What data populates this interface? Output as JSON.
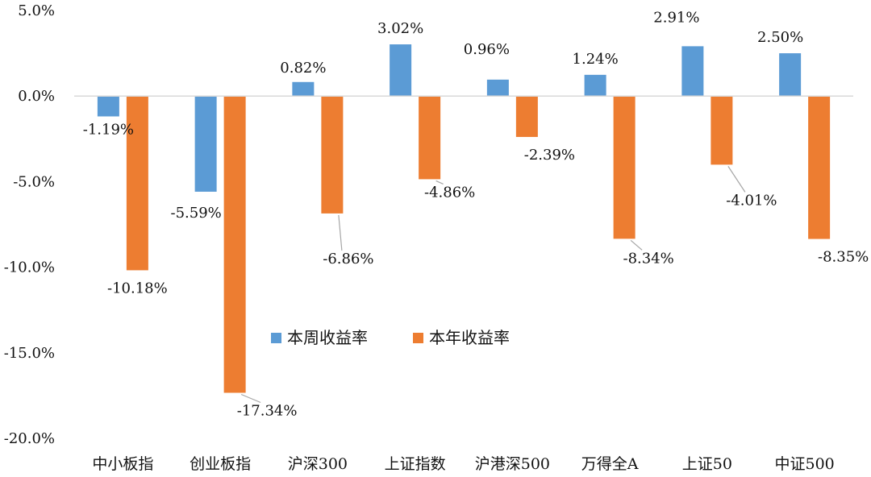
{
  "chart_data": {
    "type": "bar",
    "categories": [
      "中小板指",
      "创业板指",
      "沪深300",
      "上证指数",
      "沪港深500",
      "万得全A",
      "上证50",
      "中证500"
    ],
    "series": [
      {
        "name": "本周收益率",
        "color": "#5B9BD5",
        "values": [
          -1.19,
          -5.59,
          0.82,
          3.02,
          0.96,
          1.24,
          2.91,
          2.5
        ],
        "labels": [
          "-1.19%",
          "-5.59%",
          "0.82%",
          "3.02%",
          "0.96%",
          "1.24%",
          "2.91%",
          "2.50%"
        ]
      },
      {
        "name": "本年收益率",
        "color": "#ED7D31",
        "values": [
          -10.18,
          -17.34,
          -6.86,
          -4.86,
          -2.39,
          -8.34,
          -4.01,
          -8.35
        ],
        "labels": [
          "-10.18%",
          "-17.34%",
          "-6.86%",
          "-4.86%",
          "-2.39%",
          "-8.34%",
          "-4.01%",
          "-8.35%"
        ]
      }
    ],
    "yticks": [
      5,
      0,
      -5,
      -10,
      -15,
      -20
    ],
    "ytick_labels": [
      "5.0%",
      "0.0%",
      "-5.0%",
      "-10.0%",
      "-15.0%",
      "-20.0%"
    ],
    "ylim": [
      -20,
      5
    ],
    "grid": false,
    "legend_position": "center"
  }
}
